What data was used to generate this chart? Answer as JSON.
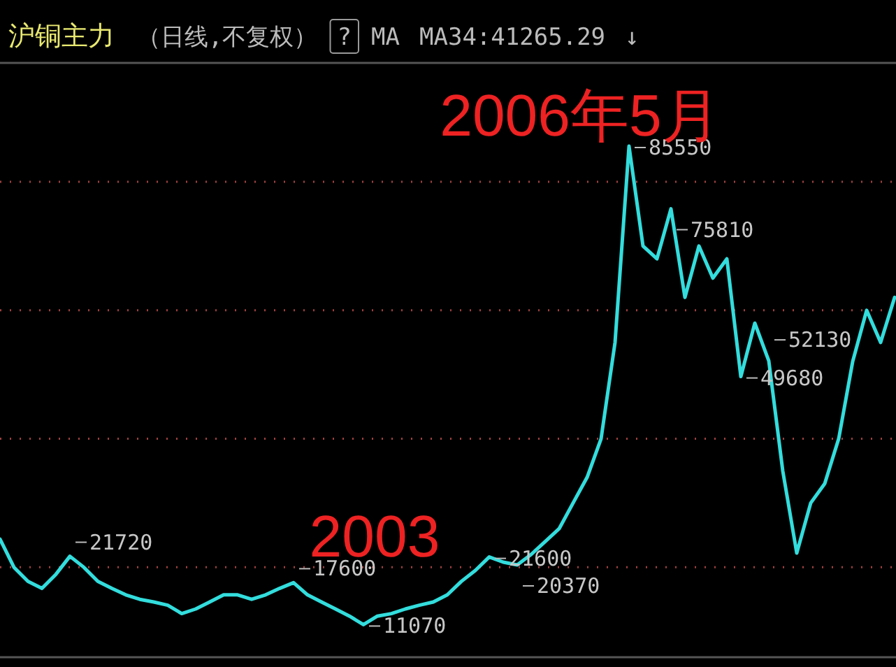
{
  "chart_data": {
    "type": "line",
    "title": "沪铜主力",
    "annotations": [
      "（日线,不复权）",
      "?",
      "MA",
      "MA34:41265.29",
      "↓",
      "2003",
      "2006年5月"
    ],
    "categories": [
      null,
      null,
      null,
      null,
      null,
      null,
      null,
      null,
      null,
      null,
      null,
      null,
      null,
      null,
      null,
      null,
      null,
      null,
      null,
      null,
      null,
      null,
      null,
      null,
      null,
      null,
      null,
      null,
      null,
      null,
      null,
      null,
      null,
      null,
      null,
      null,
      null,
      null,
      null,
      null,
      null,
      null,
      null,
      null,
      null,
      null,
      null,
      null,
      null,
      null,
      null,
      null,
      null,
      null,
      null,
      null,
      null,
      null,
      null,
      null,
      null,
      null,
      null,
      null,
      null
    ],
    "series": [
      {
        "color": "#33dddd",
        "values": [
          24400,
          20000,
          17800,
          16700,
          18900,
          21720,
          20000,
          17800,
          16700,
          15700,
          15000,
          14600,
          14100,
          12800,
          13500,
          14600,
          15700,
          15700,
          15000,
          15700,
          16700,
          17600,
          15700,
          14600,
          13500,
          12400,
          11070,
          12400,
          12800,
          13500,
          14100,
          14600,
          15700,
          17800,
          19500,
          21600,
          20800,
          20370,
          22000,
          24000,
          26000,
          30000,
          34000,
          40000,
          55000,
          85550,
          70000,
          68000,
          75810,
          62000,
          70000,
          65000,
          68000,
          49680,
          58000,
          52130,
          35000,
          22210,
          30000,
          33000,
          40000,
          52000,
          60000,
          55000,
          62000
        ],
        "value_labels": [
          null,
          null,
          null,
          null,
          null,
          "21720",
          null,
          null,
          null,
          null,
          null,
          null,
          null,
          null,
          null,
          null,
          null,
          null,
          null,
          null,
          null,
          "17600",
          null,
          null,
          null,
          null,
          "11070",
          null,
          null,
          null,
          null,
          null,
          null,
          null,
          null,
          "21600",
          null,
          "20370",
          null,
          null,
          null,
          null,
          null,
          null,
          null,
          "85550",
          null,
          null,
          "75810",
          null,
          null,
          null,
          null,
          "49680",
          null,
          "52130",
          null,
          null,
          null,
          null,
          null,
          null,
          null,
          null,
          null
        ]
      }
    ],
    "ylim": [
      6000,
      98500
    ],
    "yticks": [
      {
        "value": 20000,
        "label": null
      },
      {
        "value": 40000,
        "label": null
      },
      {
        "value": 60000,
        "label": null
      },
      {
        "value": 80000,
        "label": null
      }
    ],
    "grid": "y",
    "marker": "none",
    "line_style": "solid"
  }
}
